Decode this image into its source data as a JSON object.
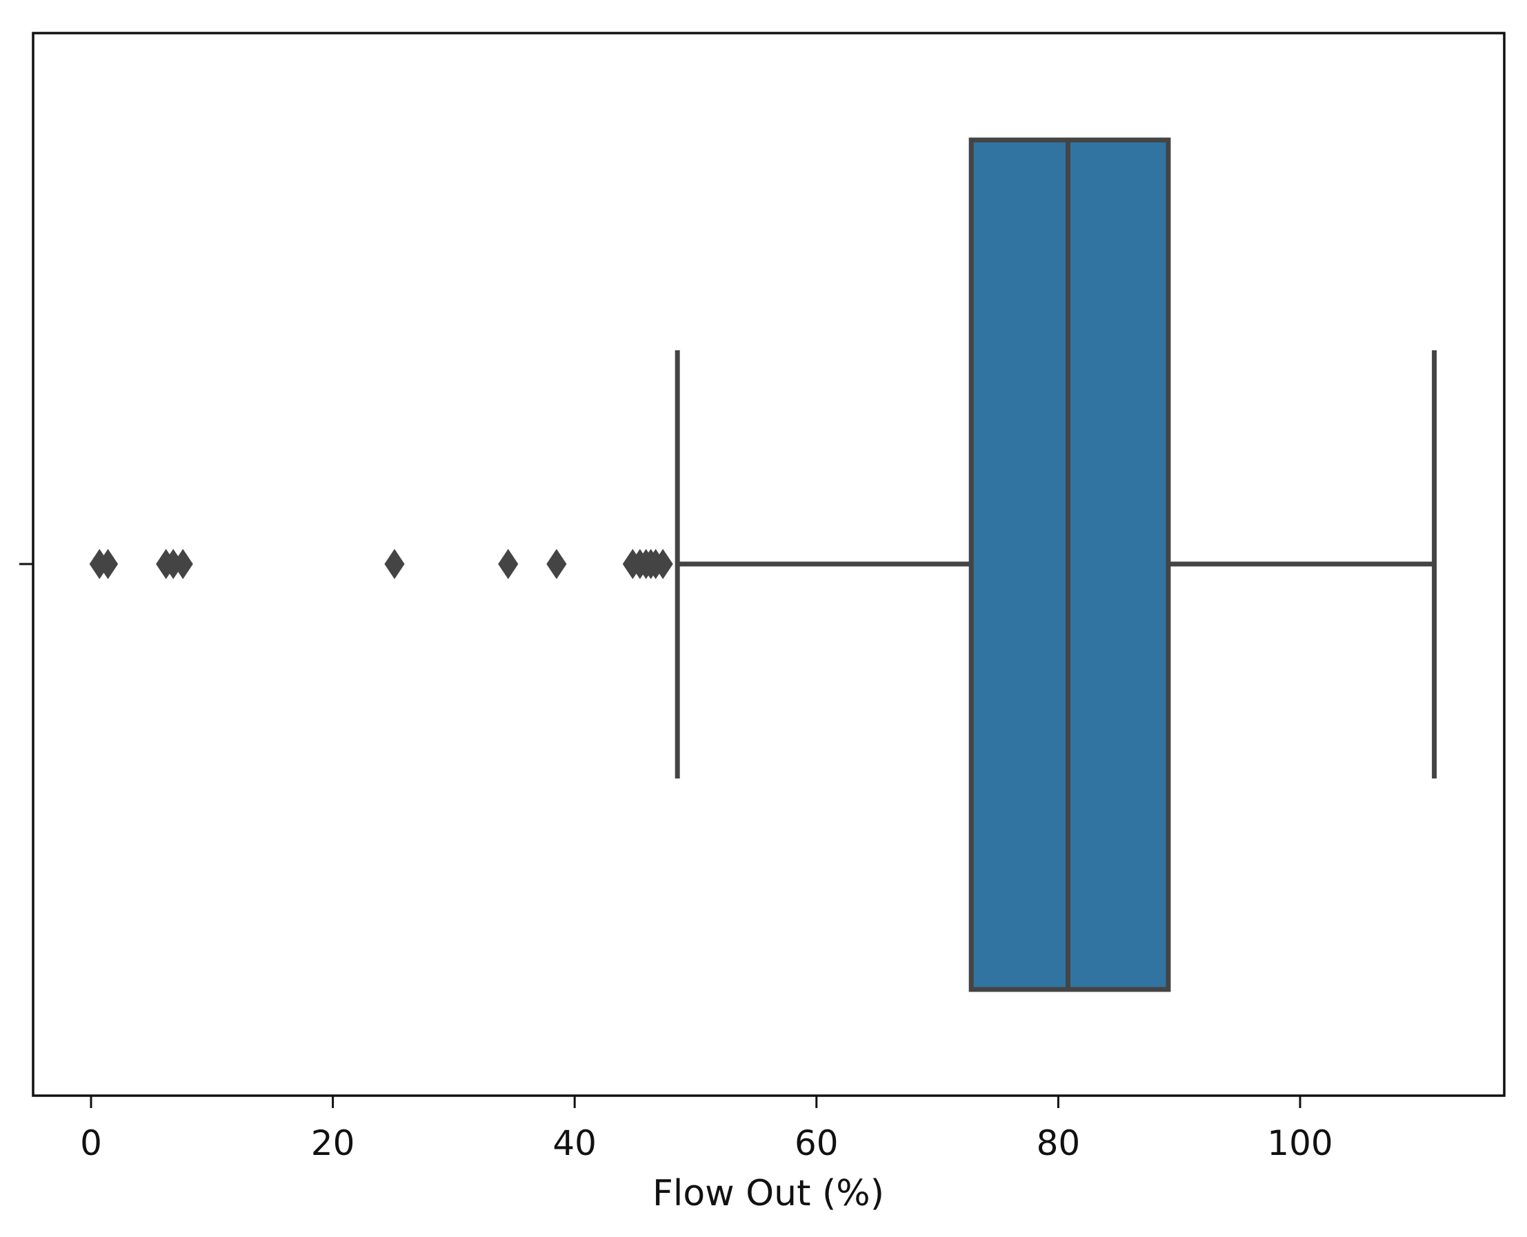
{
  "chart_data": {
    "type": "boxplot",
    "orientation": "horizontal",
    "xlabel": "Flow Out (%)",
    "ylabel": "",
    "xlim": [
      -5,
      117
    ],
    "xticks": [
      0,
      20,
      40,
      60,
      80,
      100
    ],
    "xtick_labels": [
      "0",
      "20",
      "40",
      "60",
      "80",
      "100"
    ],
    "grid": false,
    "colors": {
      "box": "#3274a1",
      "line": "#444444"
    },
    "box": {
      "whisker_low": 48.5,
      "q1": 72.8,
      "median": 80.8,
      "q3": 89.1,
      "whisker_high": 111.1
    },
    "outliers": [
      0.7,
      1.4,
      6.2,
      6.8,
      7.6,
      25.1,
      34.5,
      38.5,
      44.8,
      45.4,
      45.9,
      46.3,
      46.7,
      47.3
    ]
  }
}
